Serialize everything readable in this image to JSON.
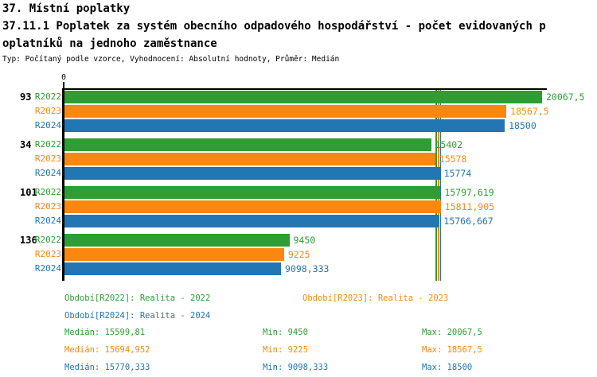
{
  "header": {
    "title": "37. Místní poplatky",
    "subtitle_line1": "37.11.1 Poplatek za systém obecního odpadového hospodářství - počet evidovaných p",
    "subtitle_line2": "oplatníků na jednoho zaměstnance",
    "meta": "Typ: Počítaný podle vzorce, Vyhodnocení: Absolutní hodnoty, Průměr: Medián"
  },
  "chart_data": {
    "type": "bar",
    "orientation": "horizontal",
    "title": "37.11.1 Poplatek za systém obecního odpadového hospodářství - počet evidovaných poplatníků na jednoho zaměstnance",
    "xlim": [
      0,
      20067.5
    ],
    "axis_zero_label": "0",
    "grid": false,
    "legend_position": "bottom",
    "categories": [
      "93",
      "34",
      "101",
      "136"
    ],
    "series": [
      {
        "name": "R2022",
        "color": "#2E9D32",
        "legend": "Období[R2022]: Realita - 2022",
        "median": 15599.81,
        "values": [
          20067.5,
          15402,
          15797.619,
          9450
        ],
        "value_labels": [
          "20067,5",
          "15402",
          "15797,619",
          "9450"
        ]
      },
      {
        "name": "R2023",
        "color": "#FC870F",
        "legend": "Období[R2023]: Realita - 2023",
        "median": 15694.952,
        "values": [
          18567.5,
          15578,
          15811.905,
          9225
        ],
        "value_labels": [
          "18567,5",
          "15578",
          "15811,905",
          "9225"
        ]
      },
      {
        "name": "R2024",
        "color": "#2276B4",
        "legend": "Období[R2024]: Realita - 2024",
        "median": 15770.333,
        "values": [
          18500,
          15774,
          15766.667,
          9098.333
        ],
        "value_labels": [
          "18500",
          "15774",
          "15766,667",
          "9098,333"
        ]
      }
    ],
    "stats": [
      {
        "series": "R2022",
        "color": "#2E9D32",
        "median_label": "Medián: 15599,81",
        "min_label": "Min: 9450",
        "max_label": "Max: 20067,5"
      },
      {
        "series": "R2023",
        "color": "#FC870F",
        "median_label": "Medián: 15694,952",
        "min_label": "Min: 9225",
        "max_label": "Max: 18567,5"
      },
      {
        "series": "R2024",
        "color": "#2276B4",
        "median_label": "Medián: 15770,333",
        "min_label": "Min: 9098,333",
        "max_label": "Max: 18500"
      }
    ]
  },
  "colors": {
    "axis": "#000000",
    "background": "#FFFFFF"
  }
}
